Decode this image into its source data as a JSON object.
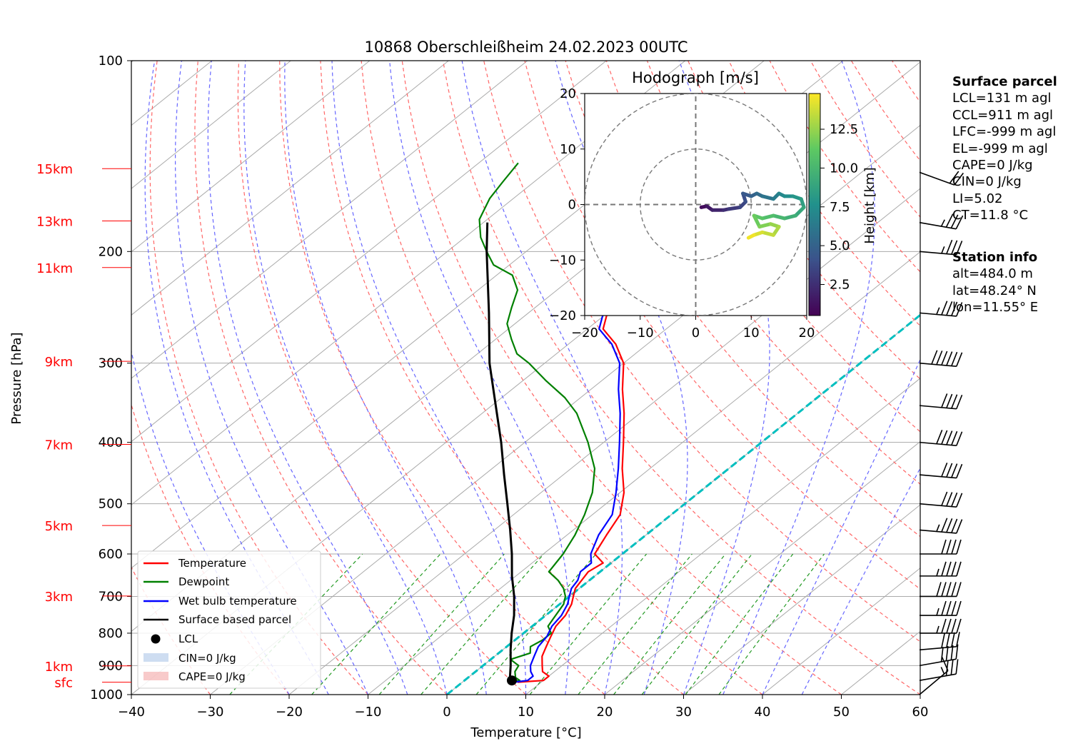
{
  "chart_data": {
    "type": "skew-t log-p",
    "title": "10868 Oberschleißheim 24.02.2023 00UTC",
    "xlabel": "Temperature [°C]",
    "ylabel": "Pressure [hPa]",
    "xlim": [
      -40,
      60
    ],
    "ylim": [
      1000,
      100
    ],
    "x_ticks": [
      "−40",
      "−30",
      "−20",
      "−10",
      "0",
      "10",
      "20",
      "30",
      "40",
      "50",
      "60"
    ],
    "pressure_ticks": [
      "100",
      "200",
      "300",
      "400",
      "500",
      "600",
      "700",
      "800",
      "900",
      "1000"
    ],
    "pressure_tick_values": [
      100,
      200,
      300,
      400,
      500,
      600,
      700,
      800,
      900,
      1000
    ],
    "height_labels": [
      {
        "label": "15km",
        "p": 148
      },
      {
        "label": "13km",
        "p": 179
      },
      {
        "label": "11km",
        "p": 212
      },
      {
        "label": "9km",
        "p": 298
      },
      {
        "label": "7km",
        "p": 403
      },
      {
        "label": "5km",
        "p": 541
      },
      {
        "label": "3km",
        "p": 699
      },
      {
        "label": "1km",
        "p": 901
      },
      {
        "label": "sfc",
        "p": 956
      }
    ],
    "series": [
      {
        "name": "Temperature",
        "color": "#ff0000",
        "points": [
          [
            956,
            7
          ],
          [
            950,
            10
          ],
          [
            935,
            10
          ],
          [
            920,
            8.5
          ],
          [
            900,
            7.5
          ],
          [
            870,
            6
          ],
          [
            840,
            5
          ],
          [
            810,
            4
          ],
          [
            780,
            3
          ],
          [
            750,
            2.5
          ],
          [
            720,
            1.5
          ],
          [
            700,
            0.5
          ],
          [
            680,
            -0.5
          ],
          [
            660,
            -1
          ],
          [
            640,
            -1.5
          ],
          [
            620,
            -1
          ],
          [
            600,
            -3.5
          ],
          [
            560,
            -5
          ],
          [
            520,
            -6.5
          ],
          [
            480,
            -9.5
          ],
          [
            440,
            -13.5
          ],
          [
            400,
            -17.5
          ],
          [
            360,
            -22
          ],
          [
            330,
            -26
          ],
          [
            300,
            -30
          ],
          [
            280,
            -34
          ],
          [
            265,
            -38
          ],
          [
            250,
            -40
          ],
          [
            240,
            -41
          ],
          [
            228,
            -41
          ],
          [
            212,
            -43
          ],
          [
            200,
            -44
          ],
          [
            190,
            -47
          ],
          [
            175,
            -49
          ],
          [
            165,
            -52
          ],
          [
            155,
            -54
          ],
          [
            145,
            -56
          ]
        ]
      },
      {
        "name": "Dewpoint",
        "color": "#008000",
        "points": [
          [
            956,
            6
          ],
          [
            950,
            7
          ],
          [
            940,
            6
          ],
          [
            920,
            5
          ],
          [
            900,
            4.5
          ],
          [
            880,
            2.5
          ],
          [
            860,
            4
          ],
          [
            840,
            3
          ],
          [
            820,
            3.5
          ],
          [
            800,
            3.5
          ],
          [
            780,
            2
          ],
          [
            760,
            1.5
          ],
          [
            720,
            0.5
          ],
          [
            700,
            -0.5
          ],
          [
            680,
            -2
          ],
          [
            660,
            -4
          ],
          [
            640,
            -6.5
          ],
          [
            600,
            -7.5
          ],
          [
            560,
            -9
          ],
          [
            520,
            -11
          ],
          [
            480,
            -13.5
          ],
          [
            440,
            -17
          ],
          [
            400,
            -22
          ],
          [
            360,
            -28
          ],
          [
            340,
            -32
          ],
          [
            320,
            -37
          ],
          [
            300,
            -42
          ],
          [
            290,
            -45
          ],
          [
            275,
            -48
          ],
          [
            260,
            -51
          ],
          [
            245,
            -53
          ],
          [
            230,
            -55
          ],
          [
            218,
            -58
          ],
          [
            210,
            -62
          ],
          [
            200,
            -65
          ],
          [
            190,
            -68
          ],
          [
            178,
            -71
          ],
          [
            165,
            -73
          ],
          [
            155,
            -74
          ],
          [
            145,
            -75
          ]
        ]
      },
      {
        "name": "Wet bulb temperature",
        "color": "#0000ff",
        "points": [
          [
            956,
            6.5
          ],
          [
            950,
            8
          ],
          [
            935,
            8
          ],
          [
            920,
            7
          ],
          [
            900,
            6
          ],
          [
            870,
            5
          ],
          [
            840,
            4
          ],
          [
            810,
            3.5
          ],
          [
            780,
            2.5
          ],
          [
            750,
            2
          ],
          [
            720,
            1
          ],
          [
            700,
            0
          ],
          [
            680,
            -1
          ],
          [
            660,
            -1.5
          ],
          [
            640,
            -2.5
          ],
          [
            620,
            -2.5
          ],
          [
            600,
            -4
          ],
          [
            560,
            -6
          ],
          [
            520,
            -7.5
          ],
          [
            480,
            -10.5
          ],
          [
            440,
            -14
          ],
          [
            400,
            -18
          ],
          [
            360,
            -22.5
          ],
          [
            330,
            -26.5
          ],
          [
            300,
            -30.5
          ],
          [
            280,
            -34.5
          ],
          [
            265,
            -38.5
          ],
          [
            250,
            -40.5
          ],
          [
            240,
            -41.5
          ],
          [
            228,
            -41.5
          ],
          [
            212,
            -43.5
          ],
          [
            200,
            -44.5
          ],
          [
            190,
            -47.5
          ],
          [
            175,
            -49.5
          ],
          [
            165,
            -52.5
          ],
          [
            155,
            -54.5
          ],
          [
            145,
            -56.5
          ]
        ]
      },
      {
        "name": "Surface based parcel",
        "color": "#000000",
        "points": [
          [
            956,
            6
          ],
          [
            900,
            3.5
          ],
          [
            850,
            1
          ],
          [
            800,
            -1.5
          ],
          [
            750,
            -4
          ],
          [
            700,
            -7
          ],
          [
            650,
            -10.5
          ],
          [
            600,
            -14
          ],
          [
            550,
            -18
          ],
          [
            500,
            -22.5
          ],
          [
            450,
            -27.5
          ],
          [
            400,
            -33
          ],
          [
            350,
            -39.5
          ],
          [
            300,
            -47
          ],
          [
            250,
            -55
          ],
          [
            200,
            -65
          ],
          [
            180,
            -69.5
          ]
        ]
      }
    ],
    "lcl": {
      "label": "LCL",
      "p": 950,
      "t": 6
    },
    "legend": {
      "placement": "lower-left",
      "entries": [
        "Temperature",
        "Dewpoint",
        "Wet bulb temperature",
        "Surface based parcel",
        "LCL",
        "CIN=0 J/kg",
        "CAPE=0 J/kg"
      ]
    },
    "wind_barbs": [
      {
        "p": 1000,
        "speed_kt": 15,
        "dir_deg": 230
      },
      {
        "p": 950,
        "speed_kt": 30,
        "dir_deg": 260
      },
      {
        "p": 900,
        "speed_kt": 40,
        "dir_deg": 260
      },
      {
        "p": 850,
        "speed_kt": 40,
        "dir_deg": 265
      },
      {
        "p": 800,
        "speed_kt": 45,
        "dir_deg": 270
      },
      {
        "p": 750,
        "speed_kt": 45,
        "dir_deg": 270
      },
      {
        "p": 700,
        "speed_kt": 50,
        "dir_deg": 270
      },
      {
        "p": 650,
        "speed_kt": 45,
        "dir_deg": 270
      },
      {
        "p": 600,
        "speed_kt": 40,
        "dir_deg": 270
      },
      {
        "p": 550,
        "speed_kt": 45,
        "dir_deg": 275
      },
      {
        "p": 500,
        "speed_kt": 40,
        "dir_deg": 275
      },
      {
        "p": 450,
        "speed_kt": 40,
        "dir_deg": 275
      },
      {
        "p": 400,
        "speed_kt": 50,
        "dir_deg": 275
      },
      {
        "p": 350,
        "speed_kt": 40,
        "dir_deg": 275
      },
      {
        "p": 300,
        "speed_kt": 60,
        "dir_deg": 275
      },
      {
        "p": 250,
        "speed_kt": 45,
        "dir_deg": 275
      },
      {
        "p": 200,
        "speed_kt": 35,
        "dir_deg": 275
      },
      {
        "p": 180,
        "speed_kt": 35,
        "dir_deg": 280
      },
      {
        "p": 150,
        "speed_kt": 20,
        "dir_deg": 290
      }
    ],
    "hodograph": {
      "title": "Hodograph [m/s]",
      "xlim": [
        -20,
        20
      ],
      "ylim": [
        -20,
        20
      ],
      "ticks": [
        "−20",
        "−10",
        "0",
        "10",
        "20"
      ],
      "rings": [
        10,
        20
      ],
      "colorbar": {
        "label": "Height [km]",
        "ticks": [
          "2.5",
          "5.0",
          "7.5",
          "10.0",
          "12.5"
        ],
        "tick_values": [
          2.5,
          5,
          7.5,
          10,
          12.5
        ],
        "range": [
          0.5,
          14.8
        ],
        "colormap": "viridis"
      },
      "points": [
        [
          1,
          -0.5,
          0.5
        ],
        [
          2,
          -0.3,
          1
        ],
        [
          3,
          -1,
          1.5
        ],
        [
          5,
          -1,
          2
        ],
        [
          6,
          -0.8,
          2.5
        ],
        [
          8,
          -0.5,
          3
        ],
        [
          9,
          0.5,
          3.5
        ],
        [
          8.5,
          2,
          4
        ],
        [
          10,
          1.5,
          4.5
        ],
        [
          11,
          2,
          5
        ],
        [
          12,
          1.5,
          5.5
        ],
        [
          14,
          1,
          6
        ],
        [
          15,
          2,
          6.5
        ],
        [
          16,
          1.5,
          7
        ],
        [
          17.5,
          1.5,
          7.5
        ],
        [
          19,
          1,
          8
        ],
        [
          19.5,
          -0.5,
          8.5
        ],
        [
          18,
          -2,
          9
        ],
        [
          16,
          -2.5,
          9.5
        ],
        [
          14,
          -2,
          10
        ],
        [
          12,
          -2.5,
          10.5
        ],
        [
          10.5,
          -2,
          11
        ],
        [
          11.5,
          -4,
          11.5
        ],
        [
          13.5,
          -3.5,
          12
        ],
        [
          15,
          -4,
          12.5
        ],
        [
          14,
          -5.5,
          13
        ],
        [
          12,
          -5,
          13.5
        ],
        [
          10.5,
          -5.5,
          14
        ],
        [
          9.5,
          -6,
          14.5
        ]
      ]
    }
  },
  "info": {
    "surface": {
      "title": "Surface parcel",
      "lines": [
        "LCL=131 m agl",
        "CCL=911 m agl",
        "LFC=-999 m agl",
        "EL=-999 m agl",
        "CAPE=0 J/kg",
        "CIN=0 J/kg",
        "LI=5.02",
        "CT=11.8 °C"
      ]
    },
    "station": {
      "title": "Station info",
      "lines": [
        "alt=484.0 m",
        "lat=48.24° N",
        "lon=11.55° E"
      ]
    }
  },
  "colors": {
    "temperature": "#ff0000",
    "dewpoint": "#008000",
    "wetbulb": "#0000ff",
    "parcel": "#000000",
    "dry_adiabat": "#ff6666",
    "moist_adiabat": "#6666ff",
    "mixing_ratio": "#229922",
    "isotherm": "#aaaaaa",
    "freezing_line": "#00bfbf",
    "height_labels": "#ff0000"
  }
}
